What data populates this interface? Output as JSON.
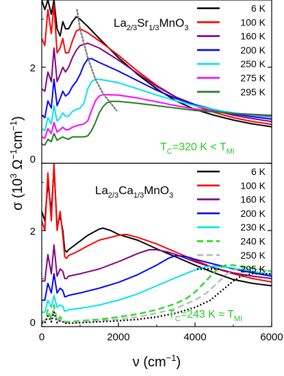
{
  "chart_data": [
    {
      "type": "line",
      "panel": "top",
      "compound": {
        "main": "La",
        "sub1": "2/3",
        "mid": "Sr",
        "sub2": "1/3",
        "tail": "MnO",
        "sub3": "3"
      },
      "annotation": {
        "lead": "T",
        "sub": "C",
        "text": "=320 K < T",
        "tail_sub": "MI",
        "color": "#22cc22"
      },
      "xlim": [
        0,
        6000
      ],
      "ylim": [
        0,
        3.4
      ],
      "yticks": [
        0,
        2
      ],
      "ytick_labels": [
        "0",
        "2"
      ],
      "legend_position": "top-right",
      "series": [
        {
          "name": "6 K",
          "color": "#000000",
          "dash": "solid",
          "x": [
            0,
            80,
            160,
            250,
            320,
            400,
            480,
            550,
            620,
            700,
            800,
            900,
            1000,
            1200,
            1500,
            2000,
            2500,
            3000,
            3500,
            4000,
            4500,
            5000,
            5500,
            6000
          ],
          "y": [
            3.4,
            3.2,
            3.4,
            3.1,
            3.4,
            2.8,
            2.65,
            2.95,
            2.8,
            2.8,
            2.95,
            3.05,
            3.0,
            2.85,
            2.6,
            2.2,
            1.85,
            1.55,
            1.3,
            1.12,
            1.0,
            0.9,
            0.82,
            0.76
          ]
        },
        {
          "name": "100 K",
          "color": "#ff0000",
          "dash": "solid",
          "x": [
            0,
            80,
            160,
            250,
            320,
            400,
            480,
            550,
            620,
            700,
            800,
            900,
            1000,
            1200,
            1500,
            2000,
            2500,
            3000,
            3500,
            4000,
            4500,
            5000,
            5500,
            6000
          ],
          "y": [
            2.6,
            2.45,
            3.2,
            2.7,
            3.3,
            2.3,
            2.4,
            2.6,
            2.3,
            2.3,
            2.55,
            2.75,
            2.8,
            2.72,
            2.55,
            2.25,
            1.92,
            1.62,
            1.38,
            1.2,
            1.06,
            0.95,
            0.87,
            0.81
          ]
        },
        {
          "name": "160 K",
          "color": "#800080",
          "dash": "solid",
          "x": [
            0,
            80,
            160,
            250,
            320,
            400,
            480,
            550,
            620,
            700,
            800,
            900,
            1000,
            1200,
            1500,
            2000,
            2500,
            3000,
            3500,
            4000,
            4500,
            5000,
            5500,
            6000
          ],
          "y": [
            1.55,
            1.5,
            1.9,
            1.7,
            2.4,
            1.7,
            1.85,
            2.0,
            1.9,
            2.0,
            2.2,
            2.35,
            2.45,
            2.5,
            2.4,
            2.15,
            1.87,
            1.6,
            1.38,
            1.22,
            1.1,
            1.0,
            0.93,
            0.87
          ]
        },
        {
          "name": "200 K",
          "color": "#0000ff",
          "dash": "solid",
          "x": [
            0,
            80,
            160,
            250,
            320,
            400,
            480,
            550,
            620,
            700,
            800,
            900,
            1000,
            1100,
            1200,
            1300,
            1500,
            2000,
            2500,
            3000,
            3500,
            4000,
            4500,
            5000,
            5500,
            6000
          ],
          "y": [
            1.0,
            0.95,
            1.3,
            1.15,
            1.75,
            1.2,
            1.35,
            1.5,
            1.4,
            1.45,
            1.6,
            1.7,
            1.85,
            2.05,
            2.17,
            2.18,
            2.1,
            1.92,
            1.72,
            1.52,
            1.35,
            1.22,
            1.12,
            1.03,
            0.97,
            0.92
          ]
        },
        {
          "name": "250 K",
          "color": "#00e5e5",
          "dash": "solid",
          "x": [
            0,
            80,
            160,
            250,
            320,
            400,
            480,
            550,
            620,
            700,
            800,
            900,
            1000,
            1100,
            1200,
            1300,
            1400,
            1500,
            2000,
            2500,
            3000,
            3500,
            4000,
            4500,
            5000,
            5500,
            6000
          ],
          "y": [
            0.72,
            0.68,
            0.95,
            0.82,
            1.2,
            0.88,
            0.95,
            1.05,
            0.98,
            0.98,
            1.08,
            1.12,
            1.15,
            1.25,
            1.55,
            1.7,
            1.75,
            1.75,
            1.68,
            1.55,
            1.42,
            1.3,
            1.2,
            1.12,
            1.05,
            1.0,
            0.96
          ]
        },
        {
          "name": "275 K",
          "color": "#ff00ff",
          "dash": "solid",
          "x": [
            0,
            80,
            160,
            250,
            320,
            400,
            480,
            550,
            620,
            700,
            800,
            900,
            1000,
            1100,
            1200,
            1300,
            1400,
            1500,
            1600,
            2000,
            2500,
            3000,
            3500,
            4000,
            4500,
            5000,
            5500,
            6000
          ],
          "y": [
            0.55,
            0.52,
            0.72,
            0.62,
            0.85,
            0.65,
            0.7,
            0.75,
            0.7,
            0.7,
            0.75,
            0.78,
            0.8,
            0.82,
            0.88,
            1.1,
            1.3,
            1.4,
            1.43,
            1.42,
            1.36,
            1.28,
            1.2,
            1.13,
            1.08,
            1.04,
            1.01,
            0.98
          ]
        },
        {
          "name": "295 K",
          "color": "#1e7d1e",
          "dash": "solid",
          "x": [
            0,
            80,
            160,
            250,
            320,
            400,
            480,
            550,
            620,
            700,
            800,
            900,
            1000,
            1100,
            1200,
            1300,
            1400,
            1500,
            1600,
            1700,
            1800,
            2000,
            2500,
            3000,
            3500,
            4000,
            4500,
            5000,
            5500,
            6000
          ],
          "y": [
            0.4,
            0.38,
            0.5,
            0.45,
            0.62,
            0.48,
            0.52,
            0.55,
            0.52,
            0.5,
            0.55,
            0.55,
            0.55,
            0.55,
            0.57,
            0.68,
            0.85,
            1.05,
            1.18,
            1.26,
            1.29,
            1.29,
            1.25,
            1.2,
            1.15,
            1.1,
            1.07,
            1.04,
            1.02,
            1.0
          ]
        }
      ],
      "guide": {
        "color": "#808080",
        "dash": "dotted",
        "x": [
          920,
          1000,
          1200,
          1400,
          1600,
          1800,
          1950
        ],
        "y": [
          3.2,
          2.8,
          2.2,
          1.75,
          1.45,
          1.25,
          1.1
        ]
      }
    },
    {
      "type": "line",
      "panel": "bottom",
      "compound": {
        "main": "La",
        "sub1": "2/3",
        "mid": "Ca",
        "sub2": "1/3",
        "tail": "MnO",
        "sub3": "3"
      },
      "annotation": {
        "lead": "T",
        "sub": "C",
        "text": "=243 K ≈ T",
        "tail_sub": "MI",
        "color": "#22cc22"
      },
      "xlim": [
        0,
        6000
      ],
      "ylim": [
        0,
        3.4
      ],
      "yticks": [
        0,
        2
      ],
      "ytick_labels": [
        "0",
        "2"
      ],
      "xticks": [
        0,
        2000,
        4000,
        6000
      ],
      "xtick_labels": [
        "0",
        "2000",
        "4000",
        "6000"
      ],
      "legend_position": "top-right",
      "series": [
        {
          "name": "6 K",
          "color": "#000000",
          "dash": "solid",
          "x": [
            0,
            80,
            160,
            250,
            320,
            400,
            480,
            550,
            600,
            650,
            700,
            900,
            1200,
            1500,
            1600,
            1800,
            2000,
            2500,
            3000,
            3500,
            4000,
            4500,
            5000,
            5500,
            6000
          ],
          "y": [
            2.4,
            2.2,
            3.0,
            2.4,
            3.3,
            2.1,
            2.3,
            2.0,
            1.6,
            1.55,
            1.6,
            1.72,
            1.9,
            2.03,
            2.05,
            2.0,
            1.92,
            1.8,
            1.62,
            1.45,
            1.28,
            1.12,
            0.98,
            0.9,
            0.85
          ]
        },
        {
          "name": "100 K",
          "color": "#ff0000",
          "dash": "solid",
          "x": [
            0,
            80,
            160,
            250,
            320,
            400,
            480,
            550,
            600,
            650,
            700,
            900,
            1200,
            1500,
            2000,
            2200,
            2500,
            3000,
            3500,
            4000,
            4500,
            5000,
            5500,
            6000
          ],
          "y": [
            2.2,
            2.0,
            3.2,
            2.2,
            3.4,
            2.0,
            2.4,
            1.9,
            1.45,
            1.42,
            1.48,
            1.55,
            1.68,
            1.8,
            1.9,
            1.92,
            1.86,
            1.72,
            1.55,
            1.38,
            1.22,
            1.1,
            1.0,
            0.93
          ]
        },
        {
          "name": "160 K",
          "color": "#800080",
          "dash": "solid",
          "x": [
            0,
            80,
            160,
            250,
            320,
            400,
            480,
            550,
            600,
            650,
            700,
            1000,
            1500,
            2000,
            2500,
            2800,
            3000,
            3300,
            3500,
            4000,
            4500,
            5000,
            5500,
            6000
          ],
          "y": [
            0.95,
            0.95,
            1.5,
            1.1,
            1.7,
            1.05,
            1.2,
            1.15,
            1.0,
            1.0,
            1.05,
            1.1,
            1.2,
            1.35,
            1.52,
            1.6,
            1.6,
            1.55,
            1.5,
            1.35,
            1.22,
            1.12,
            1.05,
            1.0
          ]
        },
        {
          "name": "200 K",
          "color": "#0000ff",
          "dash": "solid",
          "x": [
            0,
            80,
            160,
            250,
            320,
            400,
            480,
            550,
            600,
            650,
            700,
            1000,
            1500,
            2000,
            2500,
            3000,
            3300,
            3500,
            3800,
            4000,
            4500,
            5000,
            5500,
            6000
          ],
          "y": [
            0.55,
            0.55,
            0.9,
            0.7,
            1.1,
            0.7,
            0.8,
            0.75,
            0.62,
            0.63,
            0.65,
            0.7,
            0.8,
            0.92,
            1.08,
            1.28,
            1.42,
            1.48,
            1.45,
            1.4,
            1.3,
            1.2,
            1.12,
            1.05
          ]
        },
        {
          "name": "230 K",
          "color": "#00e5e5",
          "dash": "solid",
          "x": [
            0,
            80,
            160,
            250,
            320,
            400,
            480,
            550,
            600,
            650,
            700,
            1000,
            1500,
            2000,
            2500,
            3000,
            3500,
            4000,
            4300,
            4500,
            5000,
            5500,
            6000
          ],
          "y": [
            0.3,
            0.3,
            0.55,
            0.4,
            0.65,
            0.4,
            0.45,
            0.42,
            0.32,
            0.33,
            0.35,
            0.38,
            0.45,
            0.55,
            0.68,
            0.85,
            1.02,
            1.18,
            1.25,
            1.26,
            1.22,
            1.15,
            1.08
          ]
        },
        {
          "name": "240 K",
          "color": "#22dd22",
          "dash": "dashed",
          "x": [
            0,
            80,
            160,
            250,
            320,
            400,
            480,
            550,
            600,
            700,
            1000,
            1500,
            2000,
            2500,
            3000,
            3500,
            3800,
            4000,
            4200,
            4400,
            4600,
            4800,
            5000,
            5500,
            6000
          ],
          "y": [
            0.12,
            0.1,
            0.35,
            0.15,
            0.45,
            0.12,
            0.2,
            0.15,
            0.1,
            0.1,
            0.12,
            0.15,
            0.2,
            0.26,
            0.35,
            0.48,
            0.6,
            0.72,
            0.88,
            1.05,
            1.2,
            1.28,
            1.28,
            1.22,
            1.15
          ]
        },
        {
          "name": "250 K",
          "color": "#bbbbbb",
          "dash": "dashed",
          "x": [
            0,
            80,
            160,
            250,
            320,
            400,
            480,
            550,
            600,
            700,
            1000,
            1500,
            2000,
            2500,
            3000,
            3500,
            4000,
            4300,
            4600,
            4800,
            5000,
            5200,
            5500,
            6000
          ],
          "y": [
            0.1,
            0.08,
            0.28,
            0.12,
            0.38,
            0.1,
            0.15,
            0.12,
            0.08,
            0.08,
            0.1,
            0.12,
            0.15,
            0.2,
            0.28,
            0.38,
            0.55,
            0.7,
            0.92,
            1.08,
            1.18,
            1.22,
            1.2,
            1.15
          ]
        },
        {
          "name": "295 K",
          "color": "#000000",
          "dash": "dotted",
          "x": [
            0,
            80,
            160,
            250,
            320,
            400,
            480,
            550,
            600,
            700,
            1000,
            1500,
            2000,
            2500,
            3000,
            3500,
            4000,
            4400,
            4700,
            5000,
            5200,
            5500,
            6000
          ],
          "y": [
            0.08,
            0.07,
            0.22,
            0.1,
            0.3,
            0.08,
            0.12,
            0.1,
            0.07,
            0.07,
            0.08,
            0.1,
            0.12,
            0.15,
            0.2,
            0.28,
            0.4,
            0.55,
            0.75,
            0.95,
            1.05,
            1.1,
            1.1
          ]
        }
      ]
    }
  ],
  "axes": {
    "ylabel": {
      "sym": "σ (10",
      "sup": "3",
      "unit1": " Ω",
      "sup2": "−1",
      "unit2": "cm",
      "sup3": "−1",
      "close": ")"
    },
    "xlabel": {
      "sym": "ν (cm",
      "sup": "−1",
      "close": ")"
    }
  }
}
